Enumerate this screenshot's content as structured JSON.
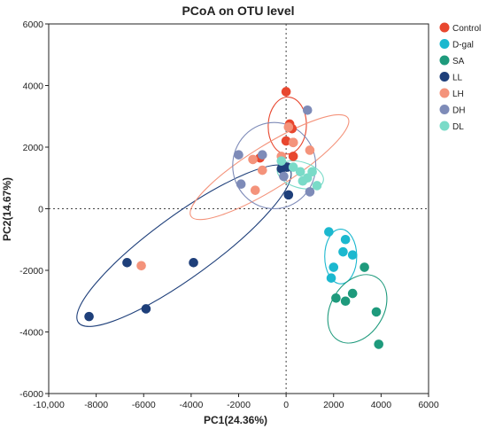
{
  "chart_data": {
    "type": "scatter",
    "title": "PCoA on OTU level",
    "xlabel": "PC1(24.36%)",
    "ylabel": "PC2(14.67%)",
    "xlim": [
      -10000,
      6000
    ],
    "ylim": [
      -6000,
      6000
    ],
    "xticks": [
      -10000,
      -8000,
      -6000,
      -4000,
      -2000,
      0,
      2000,
      4000,
      6000
    ],
    "xtick_labels": [
      "-10,000",
      "-8000",
      "-6000",
      "-4000",
      "-2000",
      "0",
      "2000",
      "4000",
      "6000"
    ],
    "yticks": [
      -6000,
      -4000,
      -2000,
      0,
      2000,
      4000,
      6000
    ],
    "ytick_labels": [
      "-6000",
      "-4000",
      "-2000",
      "0",
      "2000",
      "4000",
      "6000"
    ],
    "grid": false,
    "reference_lines": {
      "x": 0,
      "y": 0,
      "style": "dotted"
    },
    "legend_position": "right",
    "series": [
      {
        "name": "Control",
        "color": "#E8472F",
        "points": [
          [
            0,
            3800
          ],
          [
            150,
            2750
          ],
          [
            250,
            2600
          ],
          [
            0,
            2200
          ],
          [
            300,
            2150
          ],
          [
            300,
            1700
          ],
          [
            -1100,
            1650
          ]
        ],
        "ellipse": {
          "cx": 50,
          "cy": 2700,
          "rx": 1200,
          "ry": 620,
          "angle": 88
        }
      },
      {
        "name": "D-gal",
        "color": "#1BB8CF",
        "points": [
          [
            1800,
            -750
          ],
          [
            2000,
            -1900
          ],
          [
            2400,
            -1400
          ],
          [
            2500,
            -1000
          ],
          [
            2800,
            -1500
          ],
          [
            1900,
            -2250
          ]
        ],
        "ellipse": {
          "cx": 2300,
          "cy": -1550,
          "rx": 1150,
          "ry": 520,
          "angle": 90
        }
      },
      {
        "name": "SA",
        "color": "#1E9A7C",
        "points": [
          [
            3300,
            -1900
          ],
          [
            2800,
            -2750
          ],
          [
            2500,
            -3000
          ],
          [
            2100,
            -2900
          ],
          [
            3800,
            -3350
          ],
          [
            3900,
            -4400
          ]
        ],
        "ellipse": {
          "cx": 3000,
          "cy": -3250,
          "rx": 1550,
          "ry": 850,
          "angle": 58
        }
      },
      {
        "name": "LL",
        "color": "#1E3F7A",
        "points": [
          [
            -8300,
            -3500
          ],
          [
            -5900,
            -3250
          ],
          [
            -6700,
            -1750
          ],
          [
            -3900,
            -1750
          ],
          [
            -200,
            1300
          ],
          [
            100,
            450
          ],
          [
            50,
            1350
          ]
        ],
        "ellipse": {
          "cx": -4300,
          "cy": -1200,
          "rx": 5500,
          "ry": 1000,
          "angle": 36
        }
      },
      {
        "name": "LH",
        "color": "#F4937B",
        "points": [
          [
            -6100,
            -1850
          ],
          [
            -1300,
            600
          ],
          [
            -1000,
            1250
          ],
          [
            100,
            2650
          ],
          [
            300,
            2150
          ],
          [
            1000,
            1900
          ],
          [
            -200,
            1700
          ],
          [
            -1400,
            1600
          ]
        ],
        "ellipse": {
          "cx": -700,
          "cy": 1350,
          "rx": 3900,
          "ry": 700,
          "angle": 32
        }
      },
      {
        "name": "DH",
        "color": "#7E8BB8",
        "points": [
          [
            -2000,
            1750
          ],
          [
            -1000,
            1750
          ],
          [
            -1900,
            800
          ],
          [
            -100,
            1050
          ],
          [
            900,
            3200
          ],
          [
            1000,
            550
          ]
        ],
        "ellipse": {
          "cx": -500,
          "cy": 1400,
          "rx": 1750,
          "ry": 1400,
          "angle": 0
        }
      },
      {
        "name": "DL",
        "color": "#7ADBC8",
        "points": [
          [
            -200,
            1550
          ],
          [
            300,
            1350
          ],
          [
            600,
            1200
          ],
          [
            900,
            1000
          ],
          [
            1100,
            1200
          ],
          [
            1300,
            750
          ],
          [
            700,
            900
          ]
        ],
        "ellipse": {
          "cx": 600,
          "cy": 1100,
          "rx": 1000,
          "ry": 420,
          "angle": -16
        }
      }
    ]
  }
}
